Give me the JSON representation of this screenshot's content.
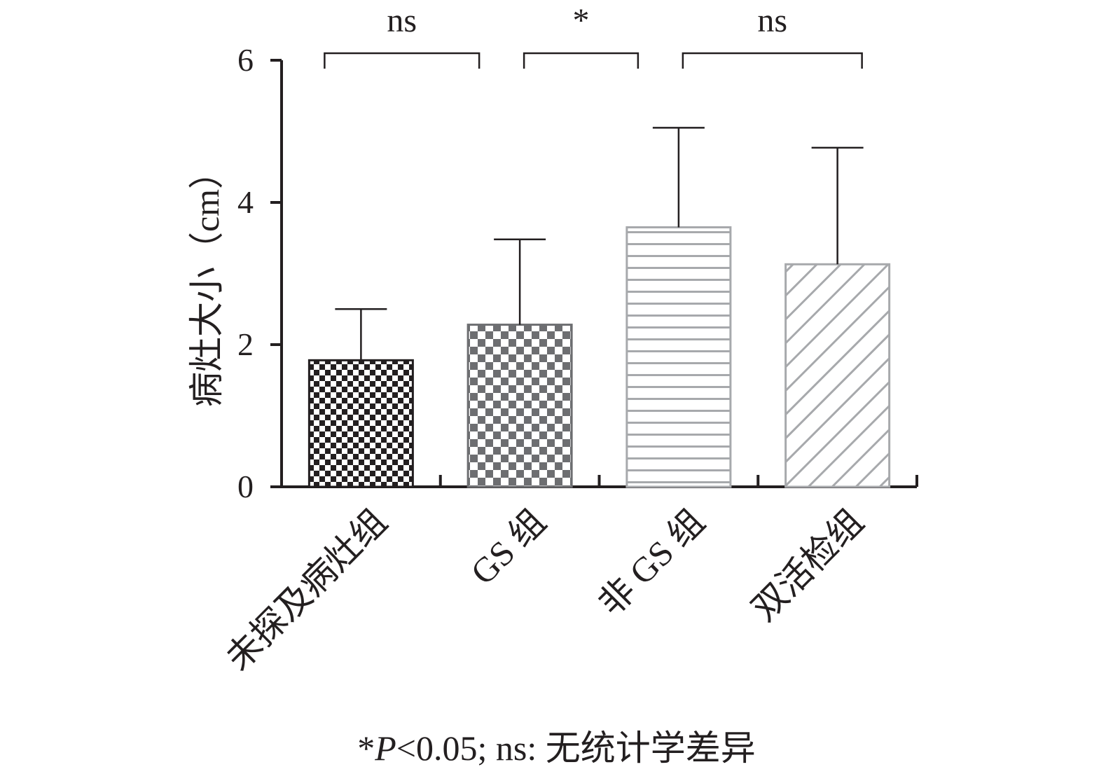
{
  "chart_data": {
    "type": "bar",
    "categories": [
      "未探及病灶组",
      "GS 组",
      "非 GS 组",
      "双活检组"
    ],
    "values": [
      1.78,
      2.28,
      3.65,
      3.13
    ],
    "error_upper": [
      2.5,
      3.48,
      5.05,
      4.77
    ],
    "ylabel": "病灶大小（cm）",
    "xlabel": "",
    "ylim": [
      0,
      6
    ],
    "yticks": [
      0,
      2,
      4,
      6
    ],
    "grid": false,
    "legend": "none",
    "bar_patterns": [
      "fine-checker-black",
      "checker-gray",
      "horizontal-lines-gray",
      "diagonal-lines-gray"
    ],
    "pattern_colors": [
      "#231f20",
      "#6d6e71",
      "#a7a9ac",
      "#a7a9ac"
    ],
    "significance": [
      {
        "pair": [
          0,
          1
        ],
        "label": "ns"
      },
      {
        "pair": [
          1,
          2
        ],
        "label": "*"
      },
      {
        "pair": [
          2,
          3
        ],
        "label": "ns"
      }
    ]
  },
  "footnote": {
    "star": "*",
    "p_symbol": "P",
    "rest": "<0.05; ns: 无统计学差异"
  }
}
